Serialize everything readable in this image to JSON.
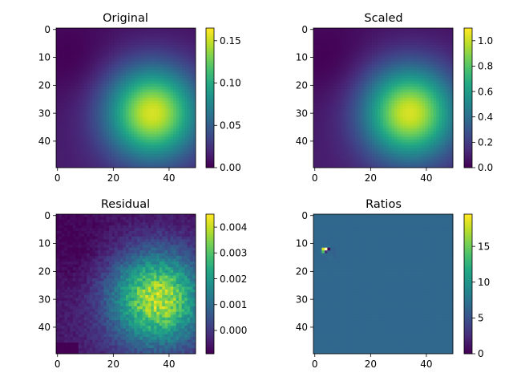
{
  "chart_data": [
    {
      "type": "heatmap",
      "title": "Original",
      "field": "gaussian",
      "grid_size": [
        50,
        50
      ],
      "xticks": [
        0,
        20,
        40
      ],
      "yticks": [
        0,
        10,
        20,
        30,
        40
      ],
      "peak_center": [
        34,
        30
      ],
      "minimum_region": [
        5,
        10
      ],
      "colorbar": {
        "ticks": [
          "0.00",
          "0.05",
          "0.10",
          "0.15"
        ],
        "tick_values": [
          0.0,
          0.05,
          0.1,
          0.15
        ],
        "range": [
          0.0,
          0.165
        ]
      },
      "colormap": "viridis"
    },
    {
      "type": "heatmap",
      "title": "Scaled",
      "field": "gaussian",
      "grid_size": [
        50,
        50
      ],
      "xticks": [
        0,
        20,
        40
      ],
      "yticks": [
        0,
        10,
        20,
        30,
        40
      ],
      "peak_center": [
        34,
        30
      ],
      "minimum_region": [
        5,
        10
      ],
      "colorbar": {
        "ticks": [
          "0.0",
          "0.2",
          "0.4",
          "0.6",
          "0.8",
          "1.0"
        ],
        "tick_values": [
          0.0,
          0.2,
          0.4,
          0.6,
          0.8,
          1.0
        ],
        "range": [
          0.0,
          1.1
        ]
      },
      "colormap": "viridis"
    },
    {
      "type": "heatmap",
      "title": "Residual",
      "field": "noisy_gaussian",
      "grid_size": [
        50,
        50
      ],
      "xticks": [
        0,
        20,
        40
      ],
      "yticks": [
        0,
        10,
        20,
        30,
        40
      ],
      "peak_center": [
        36,
        30
      ],
      "colorbar": {
        "ticks": [
          "0.000",
          "0.001",
          "0.002",
          "0.003",
          "0.004"
        ],
        "tick_values": [
          0.0,
          0.001,
          0.002,
          0.003,
          0.004
        ],
        "range": [
          -0.0009,
          0.0045
        ]
      },
      "colormap": "viridis"
    },
    {
      "type": "heatmap",
      "title": "Ratios",
      "field": "ratios",
      "grid_size": [
        50,
        50
      ],
      "xticks": [
        0,
        20,
        40
      ],
      "yticks": [
        0,
        10,
        20,
        30,
        40
      ],
      "background_value": 6.5,
      "hot_pixels": [
        [
          3,
          12,
          18.5
        ],
        [
          4,
          12,
          19.5
        ],
        [
          3,
          13,
          14
        ],
        [
          5,
          12,
          0
        ],
        [
          4,
          13,
          2.5
        ]
      ],
      "colorbar": {
        "ticks": [
          "0",
          "5",
          "10",
          "15"
        ],
        "tick_values": [
          0,
          5,
          10,
          15
        ],
        "range": [
          0,
          19.5
        ]
      },
      "colormap": "viridis"
    }
  ]
}
